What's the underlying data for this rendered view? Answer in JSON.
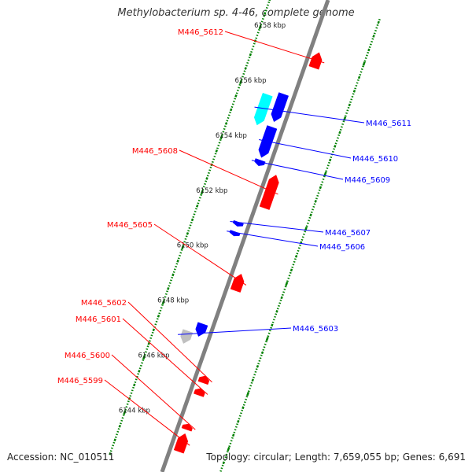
{
  "title": "Methylobacterium sp. 4-46, complete genome",
  "footer": {
    "accession": "Accession: NC_010511",
    "summary": "Topology: circular; Length: 7,659,055 bp; Genes: 6,691"
  },
  "colors": {
    "background": "#ffffff",
    "backbone": "#808080",
    "forward_gene": "#ff0000",
    "reverse_gene": "#0000ff",
    "rna_gene": "#00ffff",
    "other_gene": "#c0c0c0",
    "tick": "#008000"
  },
  "ruler": {
    "unit": "kbp",
    "labels": [
      {
        "position_kbp": 6144,
        "text": "6144 kbp"
      },
      {
        "position_kbp": 6146,
        "text": "6146 kbp"
      },
      {
        "position_kbp": 6148,
        "text": "6148 kbp"
      },
      {
        "position_kbp": 6150,
        "text": "6150 kbp"
      },
      {
        "position_kbp": 6152,
        "text": "6152 kbp"
      },
      {
        "position_kbp": 6154,
        "text": "6154 kbp"
      },
      {
        "position_kbp": 6156,
        "text": "6156 kbp"
      },
      {
        "position_kbp": 6158,
        "text": "6158 kbp"
      }
    ]
  },
  "genes": [
    {
      "name": "M446_5599",
      "strand": "forward",
      "type": "cds",
      "start_kbp": 6143.35,
      "end_kbp": 6144.0
    },
    {
      "name": "M446_5600",
      "strand": "forward",
      "type": "cds",
      "start_kbp": 6144.15,
      "end_kbp": 6144.35
    },
    {
      "name": "M446_5601",
      "strand": "forward",
      "type": "cds",
      "start_kbp": 6145.4,
      "end_kbp": 6145.65
    },
    {
      "name": "M446_5602",
      "strand": "forward",
      "type": "cds",
      "start_kbp": 6145.85,
      "end_kbp": 6146.1
    },
    {
      "name": "M446_5603",
      "strand": "reverse",
      "type": "other",
      "start_kbp": 6146.9,
      "end_kbp": 6147.35
    },
    {
      "name": "",
      "strand": "reverse",
      "type": "cds",
      "start_kbp": 6147.3,
      "end_kbp": 6147.75
    },
    {
      "name": "M446_5605",
      "strand": "forward",
      "type": "cds",
      "start_kbp": 6149.2,
      "end_kbp": 6149.8
    },
    {
      "name": "M446_5606",
      "strand": "reverse",
      "type": "cds",
      "start_kbp": 6150.95,
      "end_kbp": 6151.1
    },
    {
      "name": "M446_5607",
      "strand": "reverse",
      "type": "cds",
      "start_kbp": 6151.3,
      "end_kbp": 6151.45
    },
    {
      "name": "M446_5608",
      "strand": "forward",
      "type": "cds",
      "start_kbp": 6152.2,
      "end_kbp": 6153.4
    },
    {
      "name": "M446_5609",
      "strand": "reverse",
      "type": "cds",
      "start_kbp": 6153.5,
      "end_kbp": 6153.7
    },
    {
      "name": "M446_5610",
      "strand": "reverse",
      "type": "cds",
      "start_kbp": 6153.8,
      "end_kbp": 6154.9
    },
    {
      "name": "M446_5611",
      "strand": "reverse",
      "type": "rna",
      "start_kbp": 6154.8,
      "end_kbp": 6155.9
    },
    {
      "name": "",
      "strand": "reverse",
      "type": "cds",
      "start_kbp": 6155.1,
      "end_kbp": 6156.1
    },
    {
      "name": "M446_5612",
      "strand": "forward",
      "type": "cds",
      "start_kbp": 6157.3,
      "end_kbp": 6157.85
    }
  ]
}
